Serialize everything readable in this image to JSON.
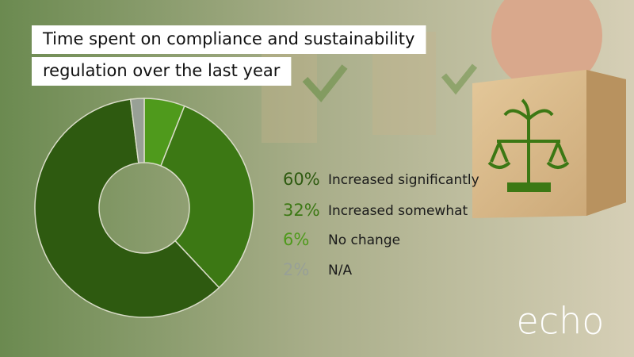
{
  "chart_data": {
    "type": "pie",
    "title": [
      "Time spent on compliance and sustainability",
      "regulation over the last year"
    ],
    "categories": [
      "Increased significantly",
      "Increased somewhat",
      "No change",
      "N/A"
    ],
    "values": [
      60,
      32,
      6,
      2
    ],
    "value_labels": [
      "60%",
      "32%",
      "6%",
      "2%"
    ],
    "colors": [
      "#2e5a10",
      "#3c7814",
      "#4f9a1c",
      "#98a096"
    ],
    "donut": true
  },
  "logo": "echo"
}
